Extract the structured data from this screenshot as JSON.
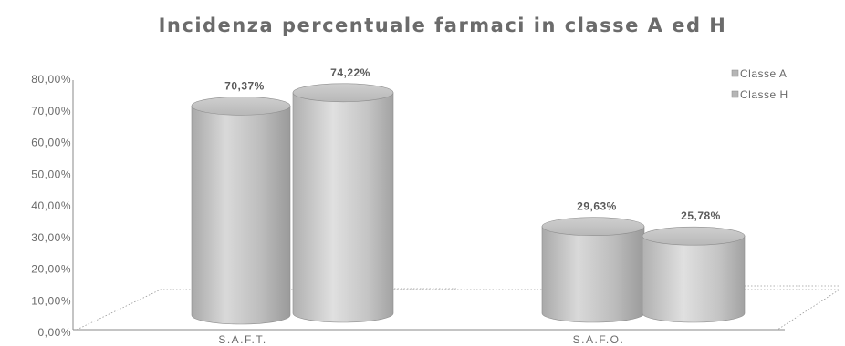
{
  "chart_data": {
    "type": "bar",
    "title": "Incidenza percentuale farmaci in classe A ed H",
    "xlabel": "",
    "ylabel": "",
    "categories": [
      "S.A.F.T.",
      "S.A.F.O."
    ],
    "series": [
      {
        "name": "Classe A",
        "values": [
          70.37,
          29.63
        ],
        "labels": [
          "70,37%",
          "29,63%"
        ]
      },
      {
        "name": "Classe H",
        "values": [
          74.22,
          25.78
        ],
        "labels": [
          "74,22%",
          "25,78%"
        ]
      }
    ],
    "ylim": [
      0,
      80
    ],
    "yticks": [
      0,
      10,
      20,
      30,
      40,
      50,
      60,
      70,
      80
    ],
    "ytick_labels": [
      "0,00%",
      "10,00%",
      "20,00%",
      "30,00%",
      "40,00%",
      "50,00%",
      "60,00%",
      "70,00%",
      "80,00%"
    ],
    "legend_position": "top-right",
    "grid": false,
    "style": "3d-cylinder",
    "colors": {
      "classe_a": "#c4c4c4",
      "classe_h": "#c4c4c4",
      "text": "#6a6a6a"
    }
  }
}
